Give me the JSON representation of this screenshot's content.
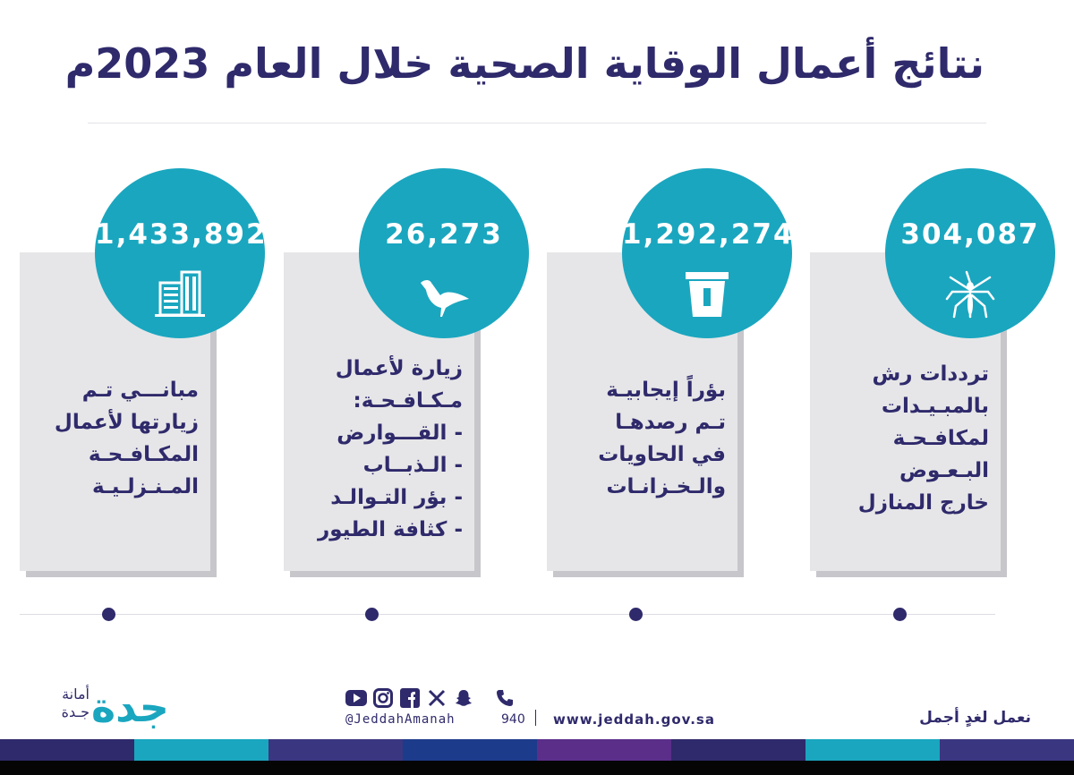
{
  "title": "نتائج أعمال الوقاية الصحية خلال العام 2023م",
  "colors": {
    "accent": "#1aa6bf",
    "navy": "#2f2a6b",
    "panel": "#e6e6e8"
  },
  "cards": [
    {
      "value": "1,433,892",
      "icon": "buildings-icon",
      "lines": [
        "مبانـــي تـم",
        "زيارتها لأعمال",
        "المكـافـحـة",
        "المـنـزلـيـة"
      ]
    },
    {
      "value": "26,273",
      "icon": "bird-icon",
      "lines": [
        "زيارة لأعمال",
        "مـكـافـحـة:",
        "- القـــوارض",
        "- الـذبــاب",
        "- بؤر التـوالـد",
        "- كثافة الطيور"
      ]
    },
    {
      "value": "1,292,274",
      "icon": "trash-bin-icon",
      "lines": [
        "بؤراً إيجابيـة",
        "تـم رصدهـا",
        "في الحاويات",
        "والـخـزانـات"
      ]
    },
    {
      "value": "304,087",
      "icon": "mosquito-icon",
      "lines": [
        "ترددات رش",
        "بالمبـيـدات",
        "لمكافـحـة",
        "البـعـوض",
        "خارج المنازل"
      ]
    }
  ],
  "footer": {
    "logo_line1": "أمانة",
    "logo_line2": "جـدة",
    "logo_mark": "جدة",
    "handle": "@JeddahAmanah",
    "phone": "940",
    "website": "www.jeddah.gov.sa",
    "slogan": "نعمل لغدٍ أجمل",
    "social_icons": [
      "youtube-icon",
      "instagram-icon",
      "facebook-icon",
      "x-icon",
      "snapchat-icon",
      "phone-icon"
    ]
  }
}
